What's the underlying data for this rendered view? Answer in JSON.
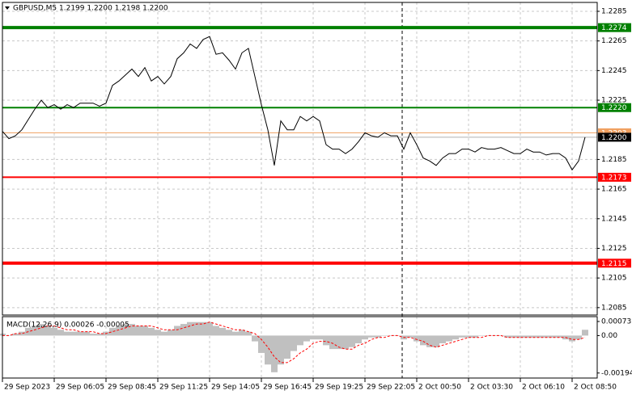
{
  "chart_data": [
    {
      "type": "line",
      "title": "GBPUSD,M5  1.2199 1.2200 1.2198 1.2200",
      "series": [
        {
          "color": "#000000",
          "values": [
            1.2204,
            1.2199,
            1.2201,
            1.2205,
            1.2212,
            1.2219,
            1.2225,
            1.222,
            1.2222,
            1.2219,
            1.2222,
            1.222,
            1.2223,
            1.2223,
            1.2223,
            1.2221,
            1.2223,
            1.2235,
            1.2238,
            1.2242,
            1.2246,
            1.2241,
            1.2247,
            1.2238,
            1.2241,
            1.2236,
            1.2241,
            1.2253,
            1.2257,
            1.2263,
            1.226,
            1.2266,
            1.2268,
            1.2256,
            1.2257,
            1.2252,
            1.2246,
            1.2257,
            1.226,
            1.2241,
            1.2222,
            1.2205,
            1.2181,
            1.2211,
            1.2205,
            1.2205,
            1.2214,
            1.2211,
            1.2214,
            1.2211,
            1.2195,
            1.2192,
            1.2192,
            1.2189,
            1.2192,
            1.2197,
            1.2203,
            1.2201,
            1.22,
            1.2203,
            1.2201,
            1.2201,
            1.2192,
            1.2203,
            1.2195,
            1.2186,
            1.2184,
            1.2181,
            1.2186,
            1.2189,
            1.2189,
            1.2192,
            1.2192,
            1.219,
            1.2193,
            1.2192,
            1.2192,
            1.2193,
            1.2191,
            1.2189,
            1.2189,
            1.2192,
            1.219,
            1.219,
            1.2188,
            1.2189,
            1.2189,
            1.2186,
            1.2178,
            1.2184,
            1.22
          ]
        }
      ],
      "levels": [
        {
          "value": 1.2274,
          "label": "1.2274",
          "color": "#008000",
          "width": 4
        },
        {
          "value": 1.222,
          "label": "1.2220",
          "color": "#008000",
          "width": 2
        },
        {
          "value": 1.2203,
          "label": "1.2203",
          "color": "#f0a060",
          "width": 1
        },
        {
          "value": 1.22,
          "label": "1.2200",
          "color": "#000000",
          "width": 1
        },
        {
          "value": 1.2173,
          "label": "1.2173",
          "color": "#ff0000",
          "width": 2
        },
        {
          "value": 1.2115,
          "label": "1.2115",
          "color": "#ff0000",
          "width": 4
        }
      ],
      "separator_x": 61.75,
      "xlim": [
        0,
        91.875
      ],
      "xticks": [
        {
          "value": 0,
          "label": "29 Sep 2023"
        },
        {
          "value": 8,
          "label": "29 Sep 06:05"
        },
        {
          "value": 16,
          "label": "29 Sep 08:45"
        },
        {
          "value": 24,
          "label": "29 Sep 11:25"
        },
        {
          "value": 32,
          "label": "29 Sep 14:05"
        },
        {
          "value": 40,
          "label": "29 Sep 16:45"
        },
        {
          "value": 48,
          "label": "29 Sep 19:25"
        },
        {
          "value": 56,
          "label": "29 Sep 22:05"
        },
        {
          "value": 64,
          "label": "2 Oct 00:50"
        },
        {
          "value": 72,
          "label": "2 Oct 03:30"
        },
        {
          "value": 80,
          "label": "2 Oct 06:10"
        },
        {
          "value": 88,
          "label": "2 Oct 08:50"
        }
      ],
      "ylim": [
        1.208,
        1.2291
      ],
      "yticks": [
        1.2285,
        1.2265,
        1.2245,
        1.2225,
        1.2185,
        1.2165,
        1.2145,
        1.2125,
        1.2105,
        1.2085
      ],
      "grid": true
    },
    {
      "type": "macd",
      "title": "MACD(12,26,9) 0.00026 -0.00005",
      "series": [
        {
          "type": "bar",
          "color": "#c0c0c0",
          "values": [
            0.0001,
            0.0,
            0.0001,
            0.0002,
            0.0004,
            0.0005,
            0.0006,
            0.0005,
            0.0004,
            0.0003,
            0.0002,
            0.0002,
            0.0002,
            0.0002,
            0.0001,
            0.0001,
            0.0002,
            0.0004,
            0.0005,
            0.0006,
            0.0006,
            0.0005,
            0.0005,
            0.0004,
            0.0003,
            0.0002,
            0.0003,
            0.0005,
            0.0006,
            0.0007,
            0.0007,
            0.0007,
            0.0007,
            0.0005,
            0.0004,
            0.0003,
            0.0002,
            0.0003,
            0.0002,
            -0.0003,
            -0.0009,
            -0.0015,
            -0.0019,
            -0.0015,
            -0.0012,
            -0.0008,
            -0.0005,
            -0.0003,
            -0.0002,
            -0.0002,
            -0.0005,
            -0.0007,
            -0.0007,
            -0.0007,
            -0.0006,
            -0.0004,
            -0.0002,
            -0.0001,
            -0.0001,
            0.0,
            0.0,
            0.0,
            -0.0002,
            -0.0001,
            -0.0003,
            -0.0005,
            -0.0006,
            -0.0006,
            -0.0004,
            -0.0003,
            -0.0002,
            -0.0001,
            -0.0001,
            -0.0001,
            0.0,
            0.0,
            0.0,
            0.0,
            -0.0001,
            -0.0001,
            -0.0001,
            -0.0001,
            -0.0001,
            -0.0001,
            -0.0001,
            -0.0001,
            -0.0001,
            -0.0002,
            -0.0003,
            -0.0002,
            0.0003
          ]
        },
        {
          "type": "line",
          "color": "#ff0000",
          "dashed": true,
          "values": [
            0.0,
            0.0,
            0.0001,
            0.0001,
            0.0002,
            0.0003,
            0.0004,
            0.0005,
            0.0005,
            0.0004,
            0.0003,
            0.0003,
            0.0002,
            0.0002,
            0.0002,
            0.0001,
            0.0001,
            0.0002,
            0.0003,
            0.0004,
            0.0005,
            0.0005,
            0.0005,
            0.0005,
            0.0004,
            0.0003,
            0.0003,
            0.0003,
            0.0004,
            0.0005,
            0.0006,
            0.0006,
            0.0007,
            0.0006,
            0.0005,
            0.0004,
            0.0003,
            0.0003,
            0.0002,
            0.0001,
            -0.0002,
            -0.0006,
            -0.0011,
            -0.0014,
            -0.0014,
            -0.0012,
            -0.0009,
            -0.0007,
            -0.0004,
            -0.0003,
            -0.0003,
            -0.0004,
            -0.0006,
            -0.0007,
            -0.0007,
            -0.0005,
            -0.0004,
            -0.0002,
            -0.0001,
            -0.0001,
            0.0,
            0.0,
            -0.0001,
            -0.0001,
            -0.0002,
            -0.0003,
            -0.0005,
            -0.0006,
            -0.0005,
            -0.0004,
            -0.0003,
            -0.0002,
            -0.0001,
            -0.0001,
            -0.0001,
            0.0,
            0.0,
            0.0,
            -0.0001,
            -0.0001,
            -0.0001,
            -0.0001,
            -0.0001,
            -0.0001,
            -0.0001,
            -0.0001,
            -0.0001,
            -0.0001,
            -0.0002,
            -0.0002,
            -0.0001
          ]
        }
      ],
      "xlim": [
        0,
        91.875
      ],
      "ylim": [
        -0.0022,
        0.00098
      ],
      "yticks": [
        0.00073,
        {
          "value": 0,
          "label": "0.00"
        },
        -0.00194
      ]
    }
  ]
}
